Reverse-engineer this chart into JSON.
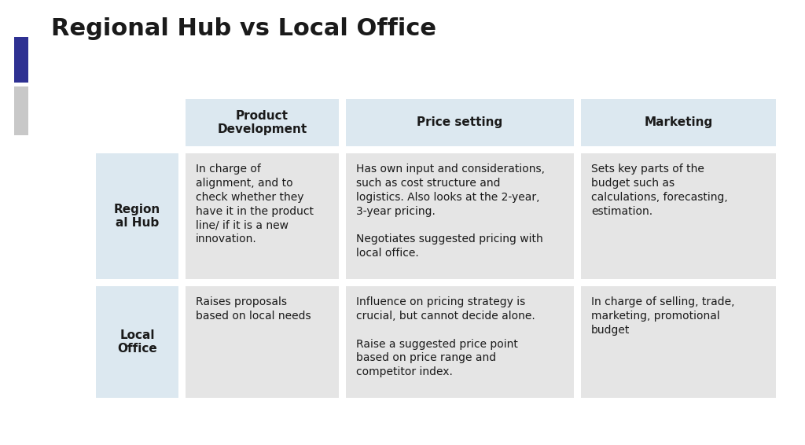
{
  "title": "Regional Hub vs Local Office",
  "title_fontsize": 22,
  "title_fontweight": "bold",
  "background_color": "#ffffff",
  "accent_color_dark": "#2e3192",
  "accent_color_light": "#c8c8c8",
  "header_bg": "#dce8f0",
  "row_label_bg": "#dce8f0",
  "cell_bg": "#e5e5e5",
  "col_headers": [
    "Product\nDevelopment",
    "Price setting",
    "Marketing"
  ],
  "row_labels": [
    "Region\nal Hub",
    "Local\nOffice"
  ],
  "cells": [
    [
      "In charge of\nalignment, and to\ncheck whether they\nhave it in the product\nline/ if it is a new\ninnovation.",
      "Has own input and considerations,\nsuch as cost structure and\nlogistics. Also looks at the 2-year,\n3-year pricing.\n\nNegotiates suggested pricing with\nlocal office.",
      "Sets key parts of the\nbudget such as\ncalculations, forecasting,\nestimation."
    ],
    [
      "Raises proposals\nbased on local needs",
      "Influence on pricing strategy is\ncrucial, but cannot decide alone.\n\nRaise a suggested price point\nbased on price range and\ncompetitor index.",
      "In charge of selling, trade,\nmarketing, promotional\nbudget"
    ]
  ],
  "header_fontsize": 11,
  "cell_fontsize": 10,
  "row_label_fontsize": 11,
  "fig_width": 10.24,
  "fig_height": 5.66,
  "dpi": 100
}
